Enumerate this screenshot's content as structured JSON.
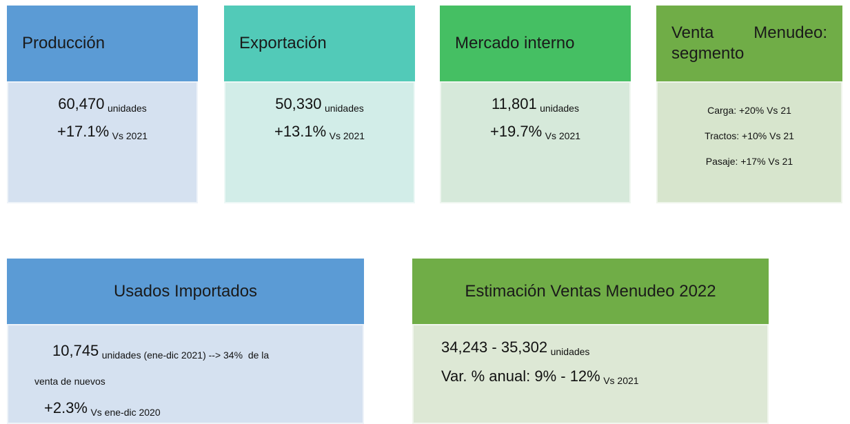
{
  "cards": [
    {
      "title": "Producción",
      "lines": [
        {
          "big": "60,470",
          "small": "unidades"
        },
        {
          "big": "+17.1%",
          "small": "Vs 2021"
        }
      ]
    },
    {
      "title": "Exportación",
      "lines": [
        {
          "big": "50,330",
          "small": "unidades"
        },
        {
          "big": "+13.1%",
          "small": "Vs 2021"
        }
      ]
    },
    {
      "title": "Mercado interno",
      "lines": [
        {
          "big": "11,801",
          "small": "unidades"
        },
        {
          "big": "+19.7%",
          "small": "Vs 2021"
        }
      ]
    },
    {
      "title": "Venta Menudeo: segmento",
      "lines": [
        {
          "small": "Carga: +20% Vs 21"
        },
        {
          "small": "Tractos: +10% Vs 21"
        },
        {
          "small": "Pasaje: +17% Vs 21"
        }
      ]
    },
    {
      "title": "Usados Importados",
      "lines": [
        {
          "big": "10,745",
          "small": "unidades (ene-dic 2021) --> 34%  de la"
        },
        {
          "small": "venta de nuevos"
        },
        {
          "big": "+2.3%",
          "small": "Vs ene-dic 2020"
        }
      ]
    },
    {
      "title": "Estimación Ventas Menudeo 2022",
      "lines": [
        {
          "big": "34,243 - 35,302",
          "small": "unidades"
        },
        {
          "big": "Var. % anual: 9% - 12%",
          "small": "Vs 2021"
        }
      ]
    }
  ]
}
